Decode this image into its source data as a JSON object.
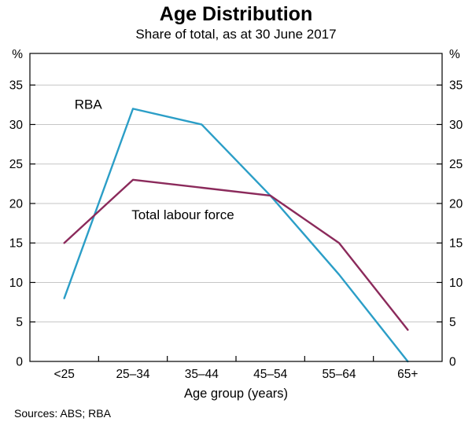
{
  "title": "Age Distribution",
  "subtitle": "Share of total, as at 30 June 2017",
  "source_note": "Sources: ABS; RBA",
  "chart_data": {
    "type": "line",
    "categories": [
      "<25",
      "25–34",
      "35–44",
      "45–54",
      "55–64",
      "65+"
    ],
    "series": [
      {
        "name": "RBA",
        "color": "#2B9EC7",
        "values": [
          8,
          32,
          30,
          21,
          11,
          0
        ],
        "label": {
          "x": 0.15,
          "y": 32
        }
      },
      {
        "name": "Total labour force",
        "color": "#8B2A5B",
        "values": [
          15,
          23,
          22,
          21,
          15,
          4
        ],
        "label": {
          "x": 0.98,
          "y": 18
        }
      }
    ],
    "xlabel": "Age group (years)",
    "ylabel_unit": "%",
    "ylim": [
      0,
      39
    ],
    "yticks": [
      0,
      5,
      10,
      15,
      20,
      25,
      30,
      35
    ],
    "grid": true,
    "grid_color": "#c6c6c6"
  }
}
